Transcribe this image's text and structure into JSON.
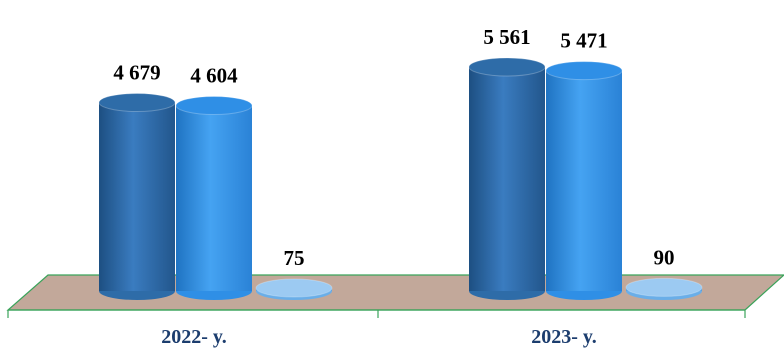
{
  "chart_data": {
    "type": "bar",
    "style": "3d-cylinder",
    "categories": [
      "2022- y.",
      "2023- y."
    ],
    "series": [
      {
        "values": [
          4679,
          5561
        ],
        "color": "#2e6ca8"
      },
      {
        "values": [
          4604,
          5471
        ],
        "color": "#2f8fe6"
      },
      {
        "values": [
          75,
          90
        ],
        "color": "#6aaee8"
      }
    ],
    "data_labels": [
      [
        "4 679",
        "5 561"
      ],
      [
        "4 604",
        "5 471"
      ],
      [
        "75",
        "90"
      ]
    ],
    "ylim": [
      0,
      5561
    ],
    "grid": false,
    "legend": "none",
    "colors": {
      "floor": "#c2a89a",
      "floor_edge": "#3aa35a",
      "label": "#1c3d6e"
    }
  }
}
